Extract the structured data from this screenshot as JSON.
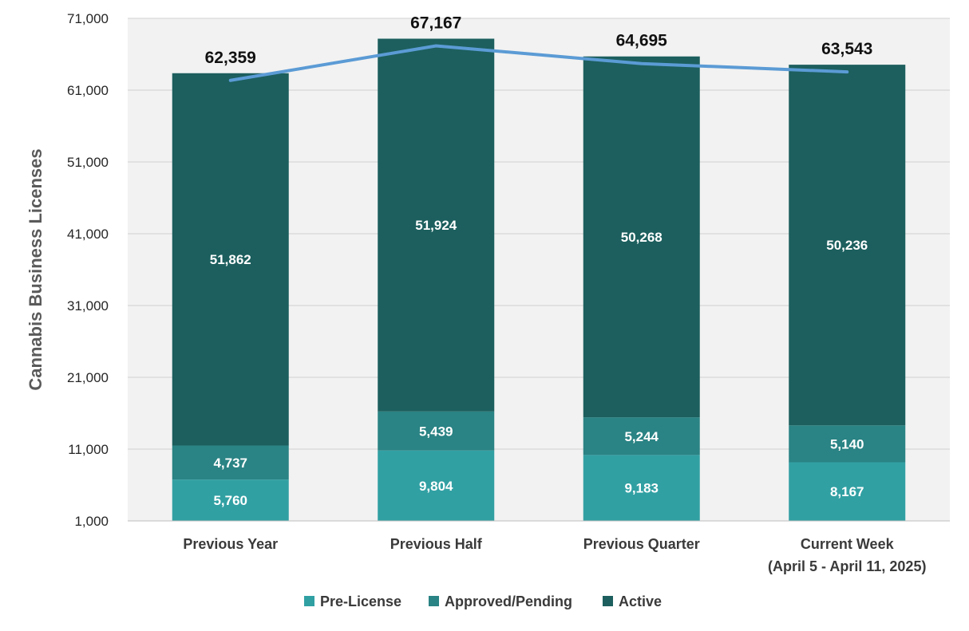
{
  "chart_data": {
    "type": "bar",
    "stacked": true,
    "ylabel": "Cannabis  Business Licenses",
    "ylim": [
      1000,
      71000
    ],
    "yticks": [
      1000,
      11000,
      21000,
      31000,
      41000,
      51000,
      61000,
      71000
    ],
    "ytick_labels": [
      "1,000",
      "11,000",
      "21,000",
      "31,000",
      "41,000",
      "51,000",
      "61,000",
      "71,000"
    ],
    "categories": [
      {
        "line1": "Previous Year",
        "line2": ""
      },
      {
        "line1": "Previous Half",
        "line2": ""
      },
      {
        "line1": "Previous Quarter",
        "line2": ""
      },
      {
        "line1": "Current Week",
        "line2": "(April 5 - April 11, 2025)"
      }
    ],
    "series": [
      {
        "name": "Pre-License",
        "color": "#31a0a3",
        "values": [
          5760,
          9804,
          9183,
          8167
        ],
        "labels": [
          "5,760",
          "9,804",
          "9,183",
          "8,167"
        ]
      },
      {
        "name": "Approved/Pending",
        "color": "#2a8384",
        "values": [
          4737,
          5439,
          5244,
          5140
        ],
        "labels": [
          "4,737",
          "5,439",
          "5,244",
          "5,140"
        ]
      },
      {
        "name": "Active",
        "color": "#1c5f5e",
        "values": [
          51862,
          51924,
          50268,
          50236
        ],
        "labels": [
          "51,862",
          "51,924",
          "50,268",
          "50,236"
        ]
      }
    ],
    "totals": {
      "values": [
        62359,
        67167,
        64695,
        63543
      ],
      "labels": [
        "62,359",
        "67,167",
        "64,695",
        "63,543"
      ],
      "line_color": "#5b9bd5"
    },
    "legend_position": "bottom",
    "grid": true
  }
}
